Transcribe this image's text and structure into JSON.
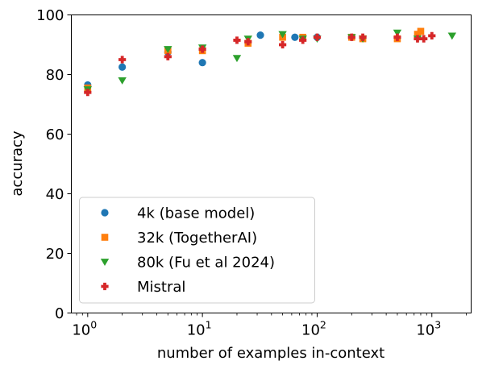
{
  "chart_data": {
    "type": "scatter",
    "title": "",
    "xlabel": "number of examples in-context",
    "ylabel": "accuracy",
    "xscale": "log",
    "xlim": [
      0.72,
      2200
    ],
    "ylim": [
      0,
      100
    ],
    "x_ticks": [
      {
        "value": 1,
        "base": "10",
        "exp": "0"
      },
      {
        "value": 10,
        "base": "10",
        "exp": "1"
      },
      {
        "value": 100,
        "base": "10",
        "exp": "2"
      },
      {
        "value": 1000,
        "base": "10",
        "exp": "3"
      }
    ],
    "y_ticks": [
      0,
      20,
      40,
      60,
      80,
      100
    ],
    "grid": false,
    "legend_position": "lower-left",
    "series": [
      {
        "name": "4k (base model)",
        "marker": "circle",
        "color": "#1f77b4",
        "points": [
          [
            1,
            76.5
          ],
          [
            2,
            82.5
          ],
          [
            5,
            87.5
          ],
          [
            10,
            84.0
          ],
          [
            32,
            93.2
          ],
          [
            64,
            92.5
          ],
          [
            100,
            92.5
          ]
        ]
      },
      {
        "name": "32k (TogetherAI)",
        "marker": "square",
        "color": "#ff7f0e",
        "points": [
          [
            1,
            75.5
          ],
          [
            5,
            88.0
          ],
          [
            10,
            88.0
          ],
          [
            25,
            90.5
          ],
          [
            50,
            92.5
          ],
          [
            75,
            92.5
          ],
          [
            200,
            92.5
          ],
          [
            250,
            92.0
          ],
          [
            500,
            92.0
          ],
          [
            750,
            93.5
          ],
          [
            800,
            94.5
          ]
        ]
      },
      {
        "name": "80k (Fu et al 2024)",
        "marker": "triangle-down",
        "color": "#2ca02c",
        "points": [
          [
            1,
            75.0
          ],
          [
            2,
            78.0
          ],
          [
            5,
            88.5
          ],
          [
            10,
            89.0
          ],
          [
            20,
            85.5
          ],
          [
            25,
            92.0
          ],
          [
            50,
            93.5
          ],
          [
            75,
            92.0
          ],
          [
            100,
            92.0
          ],
          [
            200,
            92.5
          ],
          [
            250,
            92.0
          ],
          [
            500,
            94.0
          ],
          [
            750,
            92.0
          ],
          [
            1500,
            93.0
          ]
        ]
      },
      {
        "name": "Mistral",
        "marker": "plus",
        "color": "#d62728",
        "points": [
          [
            1,
            74.0
          ],
          [
            2,
            85.0
          ],
          [
            5,
            86.0
          ],
          [
            10,
            88.5
          ],
          [
            20,
            91.5
          ],
          [
            25,
            91.0
          ],
          [
            50,
            90.0
          ],
          [
            75,
            91.5
          ],
          [
            100,
            92.5
          ],
          [
            200,
            92.5
          ],
          [
            250,
            92.5
          ],
          [
            500,
            92.5
          ],
          [
            750,
            92.0
          ],
          [
            850,
            92.0
          ],
          [
            1000,
            93.0
          ]
        ]
      }
    ]
  }
}
